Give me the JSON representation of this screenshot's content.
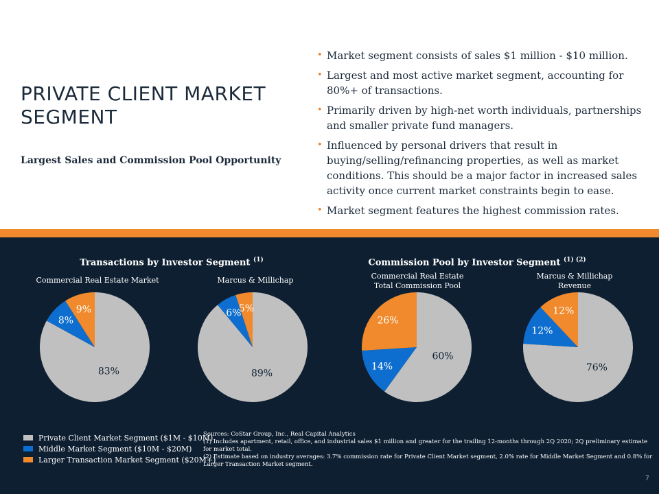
{
  "header": {
    "title_line1": "PRIVATE CLIENT MARKET",
    "title_line2": "SEGMENT",
    "subtitle": "Largest Sales and Commission Pool Opportunity"
  },
  "bullets": [
    "Market segment consists of sales $1 million - $10 million.",
    "Largest and most active market segment, accounting for 80%+ of transactions.",
    "Primarily driven by high-net worth individuals, partnerships and smaller private fund managers.",
    "Influenced by personal drivers that result in buying/selling/refinancing properties, as well as market conditions. This should be a major factor in increased sales activity once current market constraints begin to ease.",
    "Market segment features the highest commission rates."
  ],
  "colors": {
    "private": "#c0c0c0",
    "middle": "#0d6ecf",
    "larger": "#f08a2c",
    "panel": "#0e1f31"
  },
  "chart_groups": {
    "transactions": {
      "title": "Transactions by Investor Segment",
      "note": "(1)"
    },
    "commission": {
      "title": "Commission Pool by Investor Segment",
      "note": "(1) (2)"
    }
  },
  "chart_data": [
    {
      "type": "pie",
      "title": "Commercial Real Estate Market",
      "categories": [
        "Private Client Market Segment ($1M - $10M)",
        "Middle Market Segment ($10M - $20M)",
        "Larger Transaction Market Segment ($20M+)"
      ],
      "values": [
        83,
        8,
        9
      ],
      "labels": [
        "83%",
        "8%",
        "9%"
      ]
    },
    {
      "type": "pie",
      "title": "Marcus & Millichap",
      "categories": [
        "Private Client Market Segment ($1M - $10M)",
        "Middle Market Segment ($10M - $20M)",
        "Larger Transaction Market Segment ($20M+)"
      ],
      "values": [
        89,
        6,
        5
      ],
      "labels": [
        "89%",
        "6%",
        "5%"
      ]
    },
    {
      "type": "pie",
      "title_line1": "Commercial Real Estate",
      "title_line2": "Total Commission Pool",
      "categories": [
        "Private Client Market Segment ($1M - $10M)",
        "Middle Market Segment ($10M - $20M)",
        "Larger Transaction Market Segment ($20M+)"
      ],
      "values": [
        60,
        14,
        26
      ],
      "labels": [
        "60%",
        "14%",
        "26%"
      ]
    },
    {
      "type": "pie",
      "title_line1": "Marcus & Millichap",
      "title_line2": "Revenue",
      "categories": [
        "Private Client Market Segment ($1M - $10M)",
        "Middle Market Segment ($10M - $20M)",
        "Larger Transaction Market Segment ($20M+)"
      ],
      "values": [
        76,
        12,
        12
      ],
      "labels": [
        "76%",
        "12%",
        "12%"
      ]
    }
  ],
  "legend": [
    "Private Client Market Segment ($1M - $10M)",
    "Middle Market Segment ($10M - $20M)",
    "Larger Transaction Market Segment ($20M+)"
  ],
  "sources": {
    "line1": "Sources: CoStar Group, Inc., Real Capital Analytics",
    "line2": "(1)  Includes apartment, retail, office, and industrial sales $1 million and greater for the trailing 12-months through 2Q 2020; 2Q preliminary estimate for market total.",
    "line3": "(2)  Estimate based on industry averages: 3.7% commission rate for Private Client Market segment, 2.0% rate for Middle Market Segment and 0.8% for Larger Transaction Market segment."
  },
  "page_number": "7"
}
